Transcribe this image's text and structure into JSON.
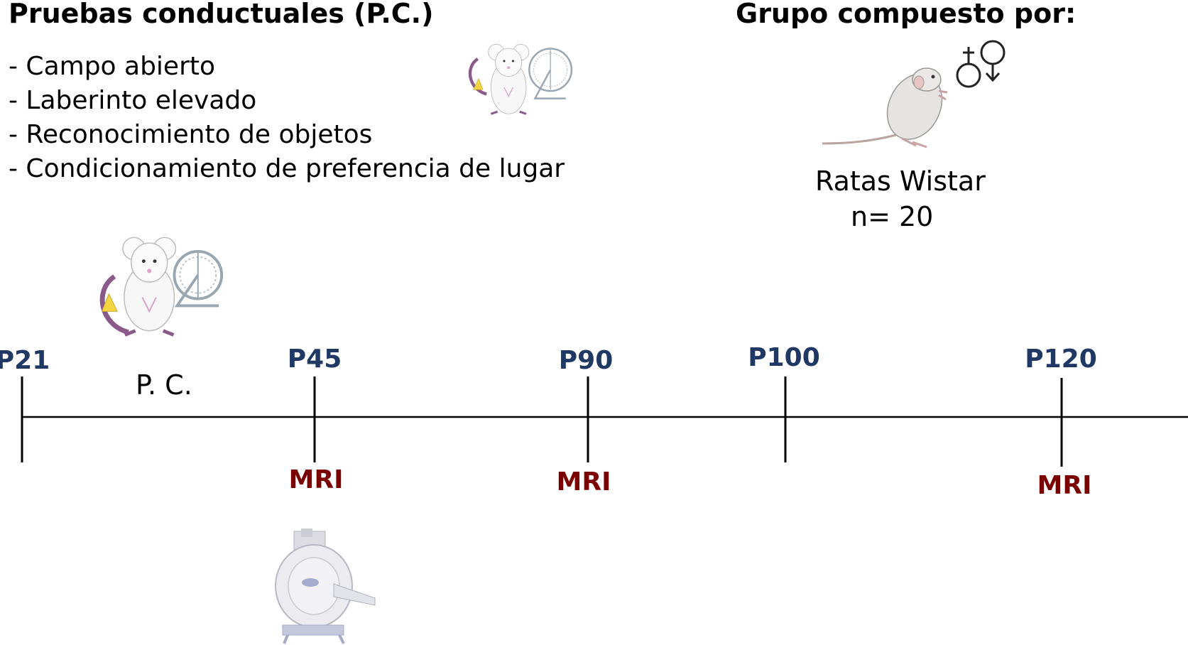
{
  "behavior": {
    "title": "Pruebas conductuales (P.C.)",
    "tests": [
      "- Campo abierto",
      "- Laberinto elevado",
      "- Reconocimiento de  objetos",
      "- Condicionamiento de preferencia de lugar"
    ]
  },
  "group": {
    "title": "Grupo compuesto por:",
    "species": "Ratas Wistar",
    "n": "n= 20"
  },
  "timeline": {
    "points": [
      "P21",
      "P45",
      "P90",
      "P100",
      "P120"
    ],
    "pc_label": "P. C.",
    "mri_label": "MRI"
  },
  "colors": {
    "point_label": "#1f3864",
    "mri_label": "#7b0000",
    "line": "#000000"
  },
  "icons": [
    "mouse-wheel-icon",
    "rat-icon",
    "male-female-symbol-icon",
    "mri-scanner-icon"
  ]
}
